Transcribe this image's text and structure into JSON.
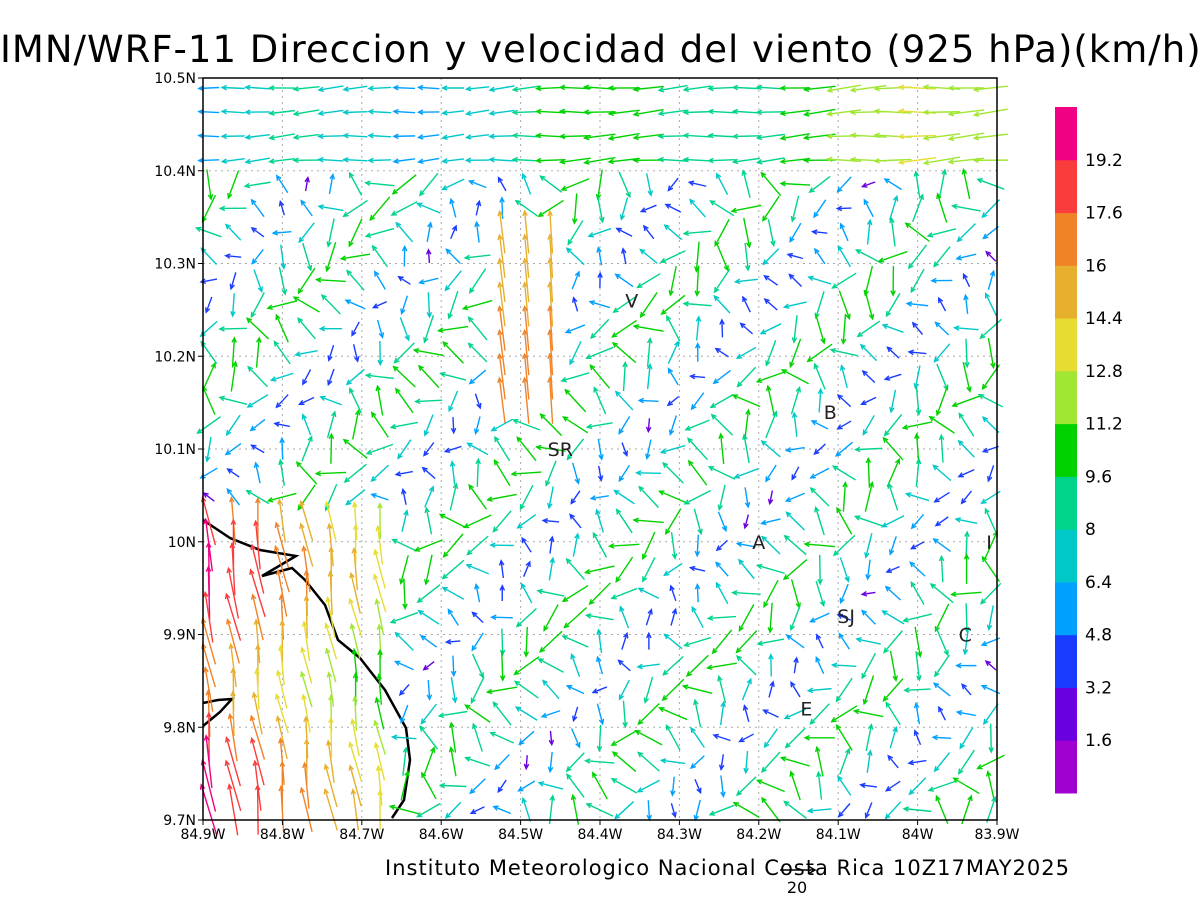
{
  "title": "IMN/WRF-11 Direccion y velocidad del viento (925 hPa)(km/h)",
  "footer": "Instituto Meteorologico Nacional Costa Rica 10Z17MAY2025",
  "ref_vector_label": "20",
  "map": {
    "lon_range": [
      -84.9,
      -83.9
    ],
    "lat_range": [
      9.7,
      10.5
    ],
    "lon_ticks": [
      "84.9W",
      "84.8W",
      "84.7W",
      "84.6W",
      "84.5W",
      "84.4W",
      "84.3W",
      "84.2W",
      "84.1W",
      "84W",
      "83.9W"
    ],
    "lat_ticks": [
      "9.7N",
      "9.8N",
      "9.9N",
      "10N",
      "10.1N",
      "10.2N",
      "10.3N",
      "10.4N",
      "10.5N"
    ],
    "grid": "dotted",
    "places": [
      {
        "label": "V",
        "lon": -84.36,
        "lat": 10.26
      },
      {
        "label": "B",
        "lon": -84.11,
        "lat": 10.14
      },
      {
        "label": "SR",
        "lon": -84.45,
        "lat": 10.1
      },
      {
        "label": "A",
        "lon": -84.2,
        "lat": 10.0
      },
      {
        "label": "I",
        "lon": -83.91,
        "lat": 10.0
      },
      {
        "label": "SJ",
        "lon": -84.09,
        "lat": 9.92
      },
      {
        "label": "C",
        "lon": -83.94,
        "lat": 9.9
      },
      {
        "label": "E",
        "lon": -84.14,
        "lat": 9.82
      }
    ]
  },
  "colorbar": {
    "labels": [
      "1.6",
      "3.2",
      "4.8",
      "6.4",
      "8",
      "9.6",
      "11.2",
      "12.8",
      "14.4",
      "16",
      "17.6",
      "19.2"
    ],
    "colors": [
      "#a000d0",
      "#6a00e0",
      "#1a3cff",
      "#00a0ff",
      "#00c8c8",
      "#00d48a",
      "#00d200",
      "#a0e632",
      "#e6dc32",
      "#e6af2d",
      "#f08228",
      "#fa3c3c",
      "#f00082"
    ]
  }
}
